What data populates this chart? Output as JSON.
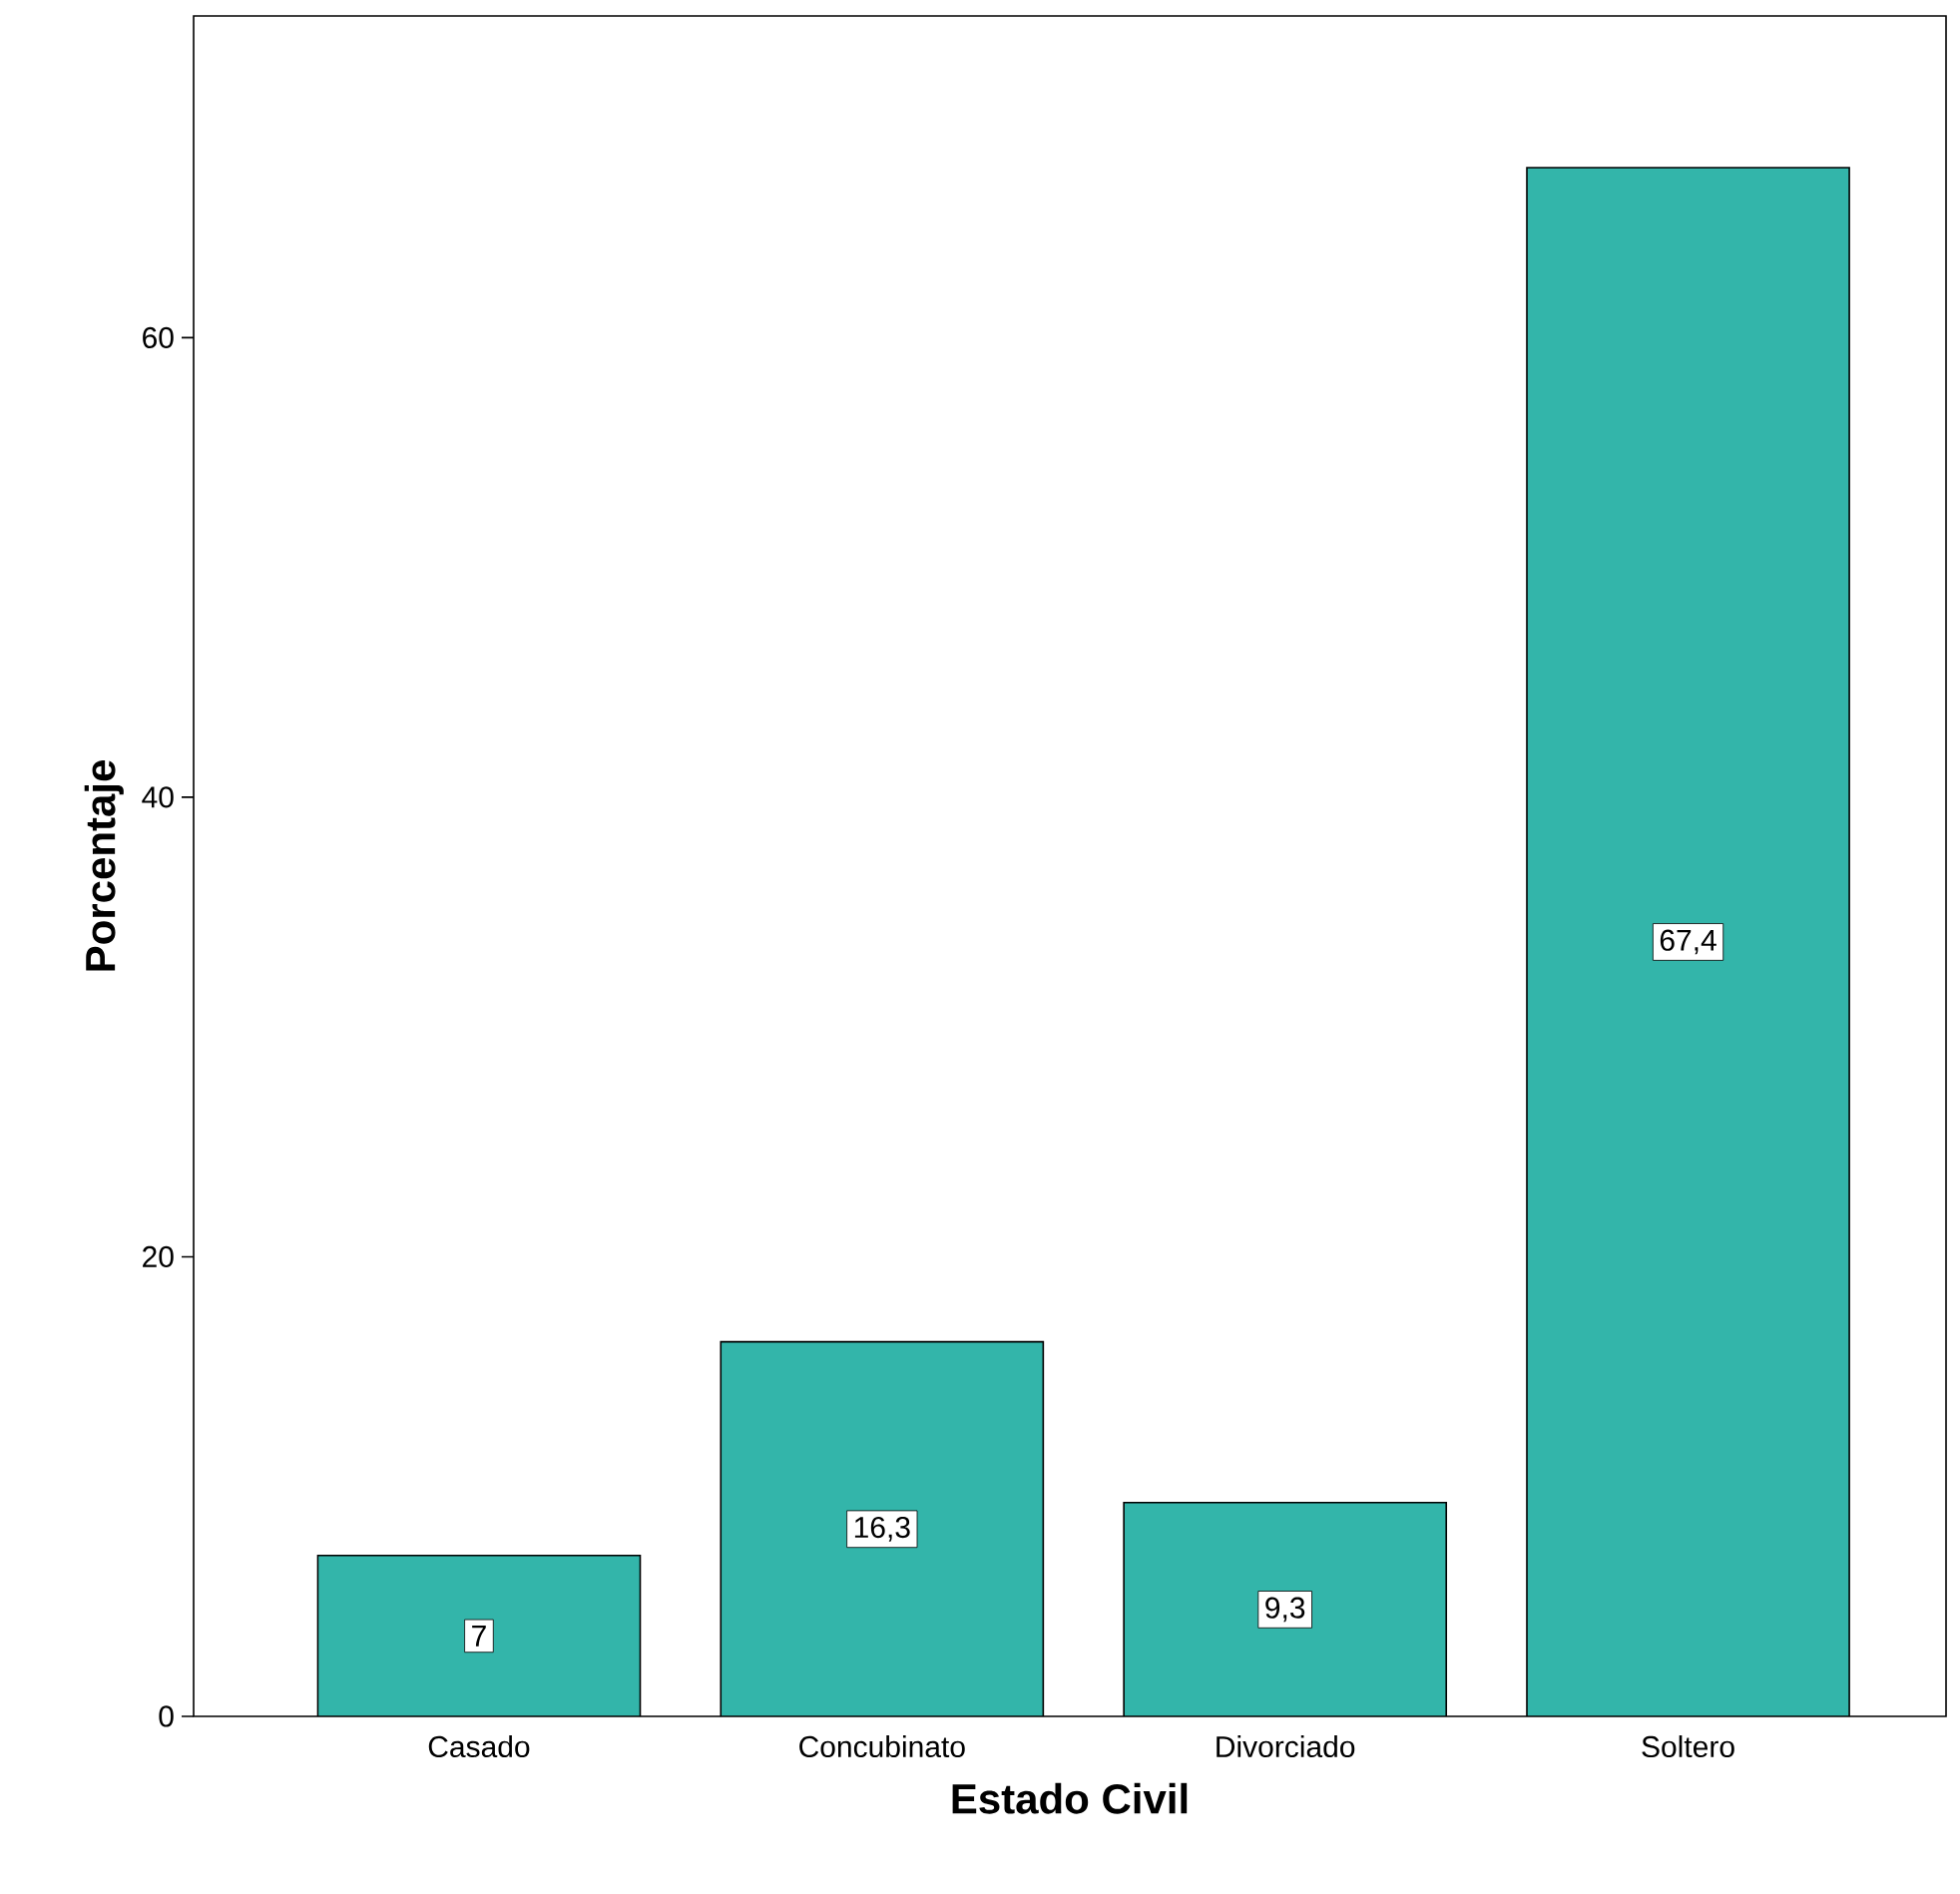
{
  "chart_data": {
    "type": "bar",
    "xlabel": "Estado Civil",
    "ylabel": "Porcentaje",
    "categories": [
      "Casado",
      "Concubinato",
      "Divorciado",
      "Soltero"
    ],
    "values": [
      7,
      16.3,
      9.3,
      67.4
    ],
    "value_labels": [
      "7",
      "16,3",
      "9,3",
      "67,4"
    ],
    "color": "#33b5aa",
    "ylim": [
      0,
      74
    ],
    "yticks": [
      0,
      20,
      40,
      60
    ],
    "grid": false
  }
}
